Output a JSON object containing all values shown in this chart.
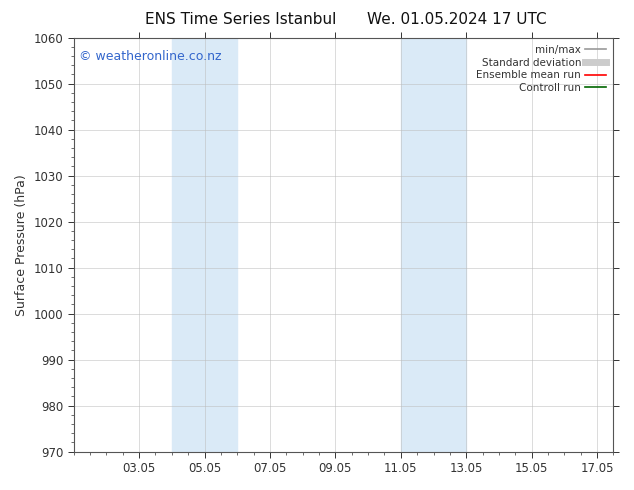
{
  "title_left": "ENS Time Series Istanbul",
  "title_right": "We. 01.05.2024 17 UTC",
  "ylabel": "Surface Pressure (hPa)",
  "ylim": [
    970,
    1060
  ],
  "yticks": [
    970,
    980,
    990,
    1000,
    1010,
    1020,
    1030,
    1040,
    1050,
    1060
  ],
  "xlim": [
    1.0,
    17.5
  ],
  "xtick_labels": [
    "03.05",
    "05.05",
    "07.05",
    "09.05",
    "11.05",
    "13.05",
    "15.05",
    "17.05"
  ],
  "xtick_positions": [
    3,
    5,
    7,
    9,
    11,
    13,
    15,
    17
  ],
  "shaded_bands": [
    {
      "x_start": 4.0,
      "x_end": 6.0
    },
    {
      "x_start": 11.0,
      "x_end": 13.0
    }
  ],
  "shaded_color": "#daeaf7",
  "background_color": "#ffffff",
  "watermark_text": "© weatheronline.co.nz",
  "watermark_color": "#3366cc",
  "watermark_fontsize": 9,
  "legend_items": [
    {
      "label": "min/max",
      "color": "#999999",
      "lw": 1.2,
      "style": "solid"
    },
    {
      "label": "Standard deviation",
      "color": "#cccccc",
      "lw": 5,
      "style": "solid"
    },
    {
      "label": "Ensemble mean run",
      "color": "#ff0000",
      "lw": 1.2,
      "style": "solid"
    },
    {
      "label": "Controll run",
      "color": "#006600",
      "lw": 1.2,
      "style": "solid"
    }
  ],
  "grid_color": "#bbbbbb",
  "grid_alpha": 0.6,
  "tick_color": "#333333",
  "spine_color": "#555555",
  "title_fontsize": 11,
  "ylabel_fontsize": 9,
  "tick_fontsize": 8.5,
  "legend_fontsize": 7.5
}
